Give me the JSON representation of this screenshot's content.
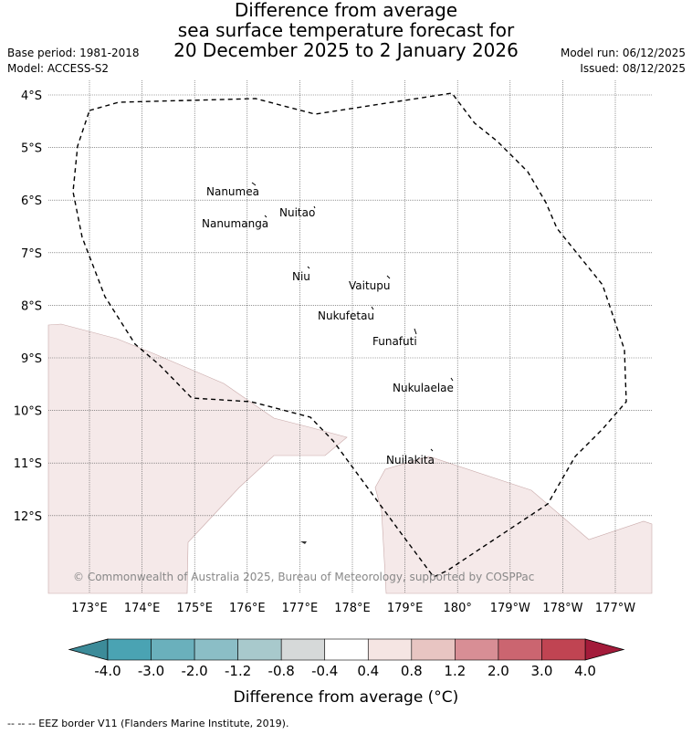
{
  "header": {
    "title_lines": [
      "Difference from average",
      "sea surface temperature forecast for",
      "20 December 2025 to 2 January 2026"
    ],
    "base_period": "Base period: 1981-2018",
    "model": "Model: ACCESS-S2",
    "model_run": "Model run: 06/12/2025",
    "issued": "Issued: 08/12/2025"
  },
  "map": {
    "lat_labels": [
      "4°S",
      "5°S",
      "6°S",
      "7°S",
      "8°S",
      "9°S",
      "10°S",
      "11°S",
      "12°S"
    ],
    "lon_labels": [
      "173°E",
      "174°E",
      "175°E",
      "176°E",
      "177°E",
      "178°E",
      "179°E",
      "180°",
      "179°W",
      "178°W",
      "177°W"
    ],
    "copyright": "© Commonwealth of Australia 2025, Bureau of Meteorology, supported by COSPPac",
    "islands": [
      {
        "name": "Nanumea"
      },
      {
        "name": "Nuitao"
      },
      {
        "name": "Nanumanga"
      },
      {
        "name": "Niu"
      },
      {
        "name": "Vaitupu"
      },
      {
        "name": "Nukufetau"
      },
      {
        "name": "Funafuti"
      },
      {
        "name": "Nukulaelae"
      },
      {
        "name": "Nuilakita"
      }
    ],
    "anomaly_fill_color": "#f5e9e9",
    "eez_line_color": "#000000"
  },
  "colorbar": {
    "label": "Difference from average (°C)",
    "ticks": [
      "-4.0",
      "-3.0",
      "-2.0",
      "-1.2",
      "-0.8",
      "-0.4",
      "0.4",
      "0.8",
      "1.2",
      "2.0",
      "3.0",
      "4.0"
    ],
    "colors": [
      "#4aa3b3",
      "#6ab0bc",
      "#8bbec6",
      "#a8c9cc",
      "#d6d9d9",
      "#ffffff",
      "#f5e5e3",
      "#e8c5c2",
      "#d88e95",
      "#cb6570",
      "#c04452"
    ],
    "under_color": "#3c8b99",
    "over_color": "#a31b3a"
  },
  "footer": {
    "legend": "-- -- -- EEZ border V11 (Flanders Marine Institute, 2019)."
  }
}
